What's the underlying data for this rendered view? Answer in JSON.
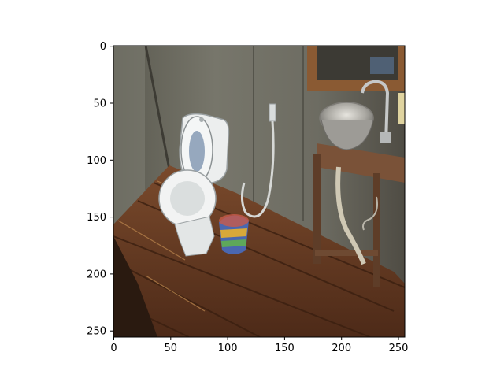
{
  "figure": {
    "image_subject": "bathroom-photo",
    "x_ticks": [
      "0",
      "50",
      "100",
      "150",
      "200",
      "250"
    ],
    "y_ticks": [
      "0",
      "50",
      "100",
      "150",
      "200",
      "250"
    ],
    "x_range": [
      0,
      256
    ],
    "y_range": [
      0,
      256
    ],
    "colors": {
      "wall": "#6f6d63",
      "floor": "#6b3a22",
      "fixture_white": "#eceeee",
      "basin_metal": "#b9b7b2",
      "wood_stand": "#6e4a32"
    }
  }
}
